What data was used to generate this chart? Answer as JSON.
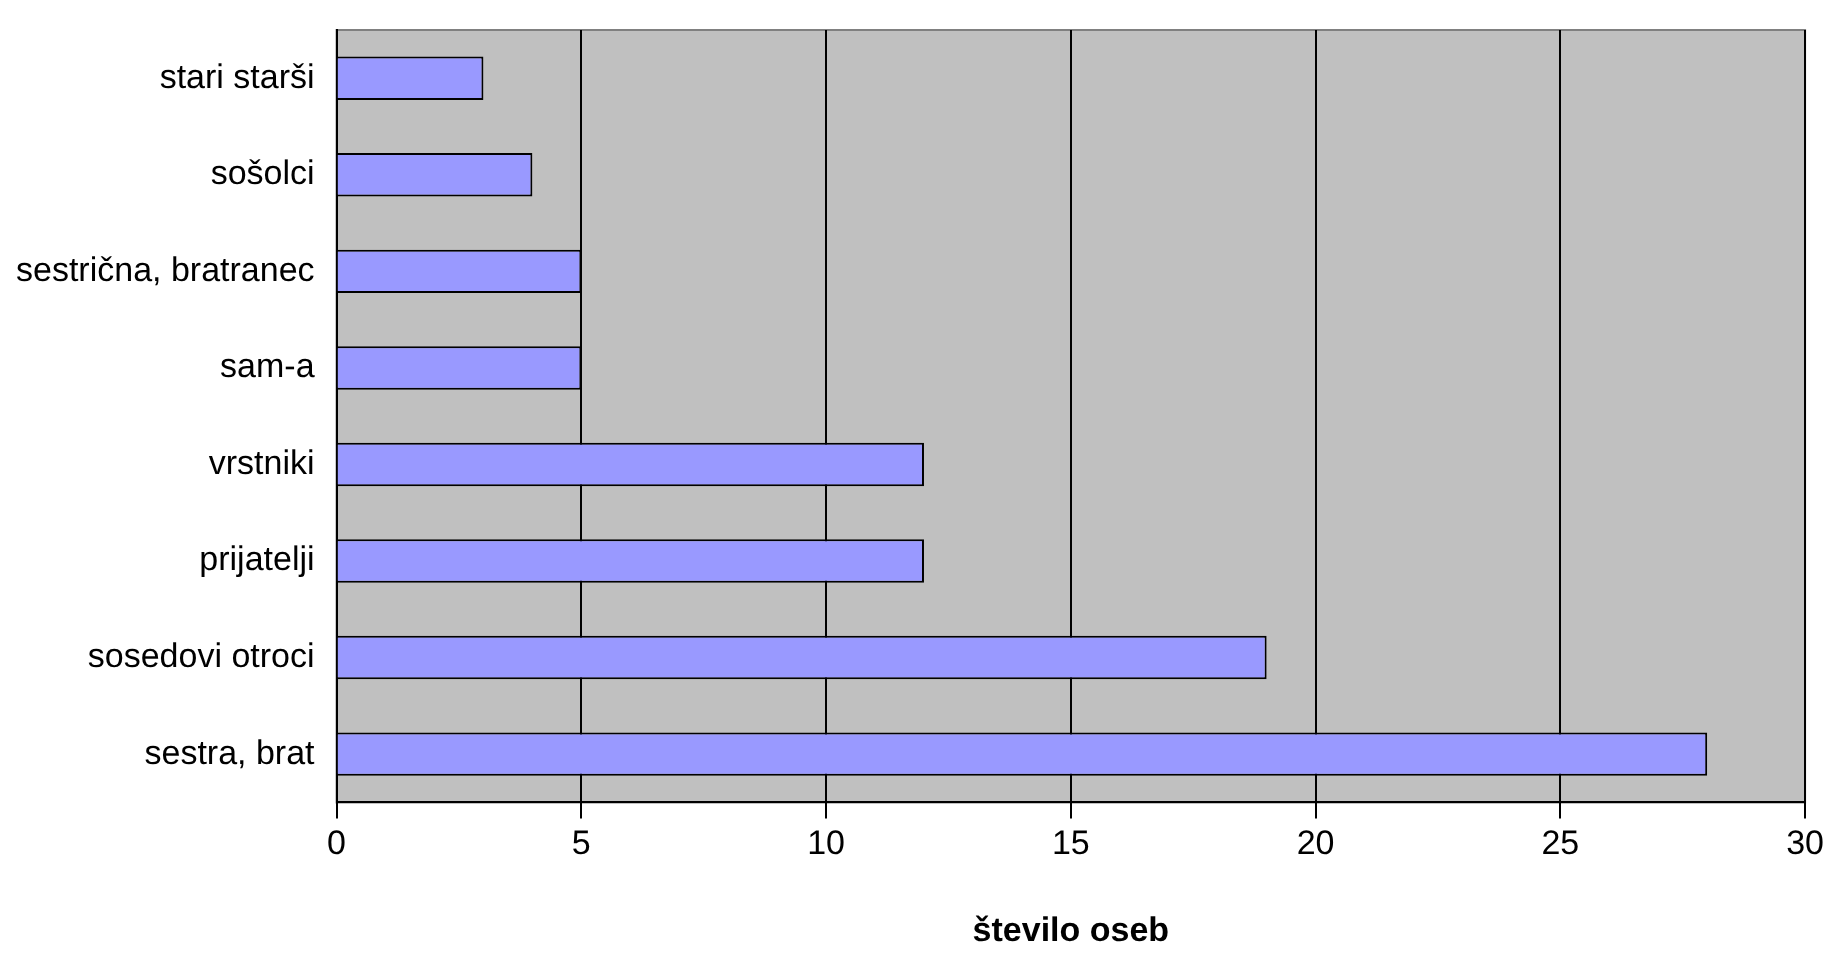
{
  "chart_data": {
    "type": "bar",
    "orientation": "horizontal",
    "xlabel": "število oseb",
    "categories": [
      "stari starši",
      "sošolci",
      "sestrična, bratranec",
      "sam-a",
      "vrstniki",
      "prijatelji",
      "sosedovi otroci",
      "sestra, brat"
    ],
    "values": [
      3,
      4,
      5,
      5,
      12,
      12,
      19,
      28
    ],
    "color": "#9999ff",
    "xlim": [
      0,
      30
    ],
    "xticks": [
      0,
      5,
      10,
      15,
      20,
      25,
      30
    ],
    "grid": "x",
    "legend": false
  }
}
